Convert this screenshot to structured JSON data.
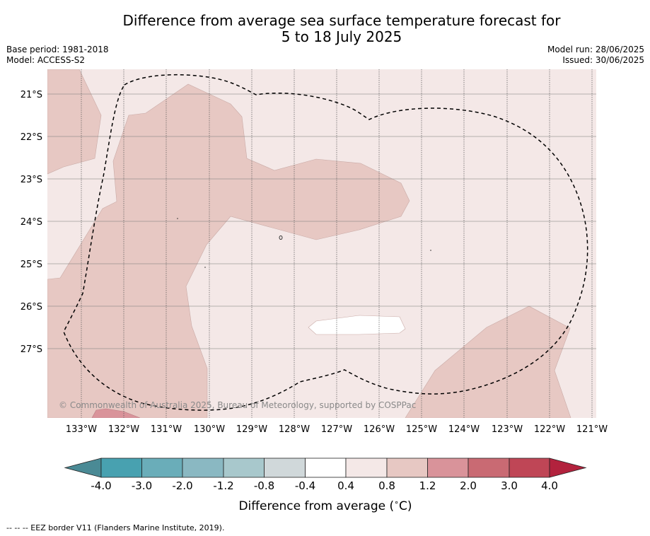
{
  "title": {
    "line1": "Difference from average sea surface temperature forecast for",
    "line2": "5 to 18 July 2025"
  },
  "meta": {
    "base_period": "Base period: 1981-2018",
    "model": "Model: ACCESS-S2",
    "model_run": "Model run: 28/06/2025",
    "issued": "Issued: 30/06/2025"
  },
  "map": {
    "lat_labels": [
      "21°S",
      "22°S",
      "23°S",
      "24°S",
      "25°S",
      "26°S",
      "27°S"
    ],
    "lon_labels": [
      "133°W",
      "132°W",
      "131°W",
      "130°W",
      "129°W",
      "128°W",
      "127°W",
      "126°W",
      "125°W",
      "124°W",
      "123°W",
      "122°W",
      "121°W"
    ],
    "copyright": "© Commonwealth of Australia 2025, Bureau of Meteorology, supported by COSPPac",
    "colors": {
      "anomaly_0_4_to_0_8": "#f4e8e7",
      "anomaly_0_8_to_1_2": "#e7c8c3",
      "anomaly_1_2_to_2_0": "#d9939a",
      "anomaly_minus0_4_to_0_4": "#ffffff"
    }
  },
  "colorbar": {
    "ticks": [
      "-4.0",
      "-3.0",
      "-2.0",
      "-1.2",
      "-0.8",
      "-0.4",
      "0.4",
      "0.8",
      "1.2",
      "2.0",
      "3.0",
      "4.0"
    ],
    "colors": [
      "#4a8a95",
      "#48a1b0",
      "#6aadb9",
      "#8ab8c2",
      "#a8c8cc",
      "#d0d8da",
      "#ffffff",
      "#f4e8e7",
      "#e7c8c3",
      "#d9939a",
      "#c96a73",
      "#bf4656",
      "#b2223d"
    ],
    "label": "Difference from average ($^\\circ$C)",
    "label_text": "Difference from average (",
    "label_unit": "C)",
    "label_degree": "∘"
  },
  "footnote": "--  --  -- EEZ border V11 (Flanders Marine Institute, 2019)."
}
